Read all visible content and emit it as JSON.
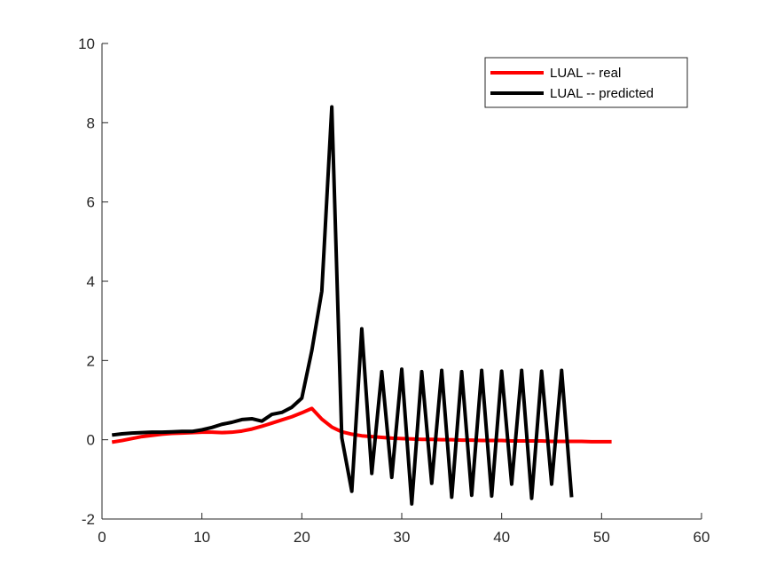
{
  "chart_data": {
    "type": "line",
    "title": "",
    "xlabel": "",
    "ylabel": "",
    "xlim": [
      0,
      60
    ],
    "ylim": [
      -2,
      10
    ],
    "xticks": [
      0,
      10,
      20,
      30,
      40,
      50,
      60
    ],
    "yticks": [
      -2,
      0,
      2,
      4,
      6,
      8,
      10
    ],
    "grid": false,
    "legend_position": "top-right",
    "series": [
      {
        "name": "LUAL -- real",
        "color": "#ff0000",
        "x": [
          1,
          2,
          3,
          4,
          5,
          6,
          7,
          8,
          9,
          10,
          11,
          12,
          13,
          14,
          15,
          16,
          17,
          18,
          19,
          20,
          21,
          22,
          23,
          24,
          25,
          26,
          27,
          28,
          29,
          30,
          31,
          32,
          33,
          34,
          35,
          36,
          37,
          38,
          39,
          40,
          41,
          42,
          43,
          44,
          45,
          46,
          47,
          48,
          49,
          50,
          51
        ],
        "y": [
          -0.06,
          -0.02,
          0.03,
          0.08,
          0.11,
          0.14,
          0.16,
          0.17,
          0.18,
          0.19,
          0.19,
          0.18,
          0.19,
          0.22,
          0.27,
          0.34,
          0.42,
          0.5,
          0.58,
          0.68,
          0.79,
          0.52,
          0.32,
          0.2,
          0.14,
          0.1,
          0.08,
          0.06,
          0.04,
          0.03,
          0.02,
          0.01,
          0.01,
          0.0,
          0.0,
          -0.01,
          -0.01,
          -0.02,
          -0.02,
          -0.02,
          -0.03,
          -0.03,
          -0.03,
          -0.03,
          -0.04,
          -0.04,
          -0.04,
          -0.04,
          -0.05,
          -0.05,
          -0.05
        ]
      },
      {
        "name": "LUAL -- predicted",
        "color": "#000000",
        "x": [
          1,
          2,
          3,
          4,
          5,
          6,
          7,
          8,
          9,
          10,
          11,
          12,
          13,
          14,
          15,
          16,
          17,
          18,
          19,
          20,
          21,
          22,
          23,
          24,
          25,
          26,
          27,
          28,
          29,
          30,
          31,
          32,
          33,
          34,
          35,
          36,
          37,
          38,
          39,
          40,
          41,
          42,
          43,
          44,
          45,
          46,
          47
        ],
        "y": [
          0.12,
          0.15,
          0.17,
          0.18,
          0.19,
          0.19,
          0.2,
          0.21,
          0.21,
          0.25,
          0.31,
          0.39,
          0.44,
          0.51,
          0.53,
          0.47,
          0.64,
          0.69,
          0.82,
          1.05,
          2.25,
          3.75,
          8.4,
          0.05,
          -1.3,
          2.8,
          -0.85,
          1.72,
          -0.95,
          1.78,
          -1.62,
          1.72,
          -1.1,
          1.75,
          -1.45,
          1.72,
          -1.4,
          1.75,
          -1.42,
          1.73,
          -1.12,
          1.75,
          -1.48,
          1.73,
          -1.12,
          1.75,
          -1.45
        ]
      }
    ]
  }
}
